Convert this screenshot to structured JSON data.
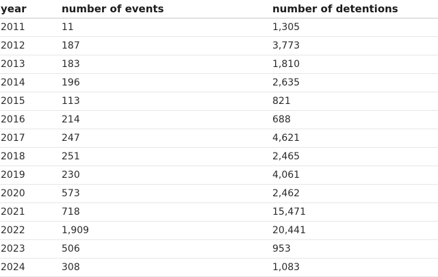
{
  "table": {
    "headers": [
      "year",
      "number of events",
      "number of detentions"
    ],
    "rows": [
      [
        "2011",
        "11",
        "1,305"
      ],
      [
        "2012",
        "187",
        "3,773"
      ],
      [
        "2013",
        "183",
        "1,810"
      ],
      [
        "2014",
        "196",
        "2,635"
      ],
      [
        "2015",
        "113",
        "821"
      ],
      [
        "2016",
        "214",
        "688"
      ],
      [
        "2017",
        "247",
        "4,621"
      ],
      [
        "2018",
        "251",
        "2,465"
      ],
      [
        "2019",
        "230",
        "4,061"
      ],
      [
        "2020",
        "573",
        "2,462"
      ],
      [
        "2021",
        "718",
        "15,471"
      ],
      [
        "2022",
        "1,909",
        "20,441"
      ],
      [
        "2023",
        "506",
        "953"
      ],
      [
        "2024",
        "308",
        "1,083"
      ]
    ]
  }
}
